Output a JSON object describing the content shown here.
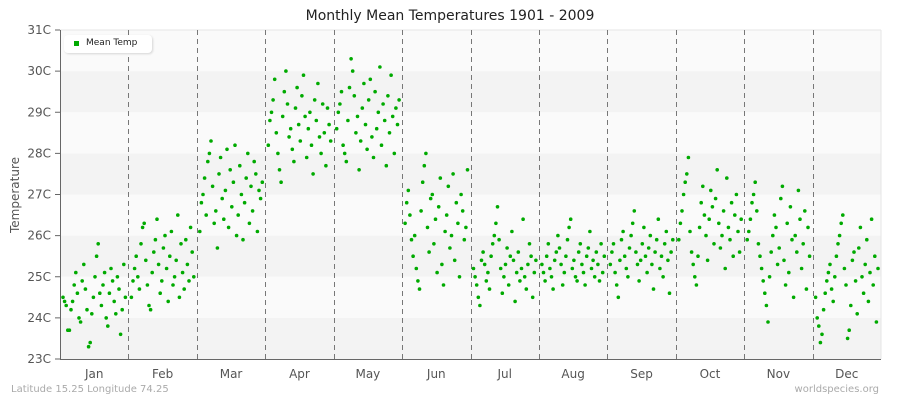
{
  "chart_data": {
    "type": "scatter",
    "title": "Monthly Mean Temperatures 1901 - 2009",
    "xlabel": "",
    "ylabel": "Temperature",
    "ylim": [
      23,
      31
    ],
    "yticks": [
      "23C",
      "24C",
      "25C",
      "26C",
      "27C",
      "28C",
      "29C",
      "30C",
      "31C"
    ],
    "categories": [
      "Jan",
      "Feb",
      "Mar",
      "Apr",
      "May",
      "Jun",
      "Jul",
      "Aug",
      "Sep",
      "Oct",
      "Nov",
      "Dec"
    ],
    "legend": [
      {
        "name": "Mean Temp",
        "color": "#00aa00"
      }
    ],
    "legend_position": "top-left",
    "grid": {
      "horizontal_bands": true,
      "vertical_dashed_month_separators": true
    },
    "series": [
      {
        "name": "Mean Temp",
        "color": "#00aa00",
        "monthly_summary": [
          {
            "month": "Jan",
            "min": 23.3,
            "max": 25.8,
            "mean": 24.6
          },
          {
            "month": "Feb",
            "min": 24.2,
            "max": 26.5,
            "mean": 25.2
          },
          {
            "month": "Mar",
            "min": 25.7,
            "max": 28.3,
            "mean": 26.9
          },
          {
            "month": "Apr",
            "min": 27.3,
            "max": 30.0,
            "mean": 28.6
          },
          {
            "month": "May",
            "min": 27.6,
            "max": 30.3,
            "mean": 28.8
          },
          {
            "month": "Jun",
            "min": 24.7,
            "max": 28.0,
            "mean": 26.2
          },
          {
            "month": "Jul",
            "min": 24.3,
            "max": 26.7,
            "mean": 25.3
          },
          {
            "month": "Aug",
            "min": 24.7,
            "max": 26.4,
            "mean": 25.4
          },
          {
            "month": "Sep",
            "min": 24.5,
            "max": 26.6,
            "mean": 25.5
          },
          {
            "month": "Oct",
            "min": 24.8,
            "max": 27.9,
            "mean": 26.1
          },
          {
            "month": "Nov",
            "min": 23.9,
            "max": 27.3,
            "mean": 25.8
          },
          {
            "month": "Dec",
            "min": 23.4,
            "max": 26.5,
            "mean": 24.9
          }
        ],
        "points_by_month": {
          "Jan": [
            24.5,
            24.4,
            24.3,
            23.7,
            23.7,
            24.2,
            24.4,
            24.8,
            25.1,
            24.6,
            24.0,
            23.9,
            24.9,
            25.3,
            24.7,
            24.2,
            23.3,
            23.4,
            24.1,
            24.5,
            25.0,
            25.5,
            25.8,
            24.6,
            24.3,
            24.8,
            25.1,
            24.0,
            23.8,
            24.6,
            25.2,
            24.9,
            24.4,
            24.1,
            25.0,
            24.7,
            23.6,
            24.2,
            25.3,
            24.5
          ],
          "Feb": [
            24.5,
            24.9,
            25.2,
            25.5,
            25.0,
            24.7,
            25.8,
            26.2,
            26.3,
            25.4,
            24.8,
            24.3,
            24.2,
            25.1,
            25.6,
            25.9,
            26.4,
            25.3,
            24.6,
            24.9,
            25.7,
            26.0,
            25.2,
            24.4,
            25.5,
            26.1,
            24.8,
            25.0,
            25.4,
            26.5,
            24.5,
            25.8,
            25.1,
            24.7,
            25.9,
            25.3,
            24.9,
            26.2,
            25.6,
            25.0
          ],
          "Mar": [
            26.1,
            26.8,
            27.0,
            27.4,
            26.5,
            27.8,
            28.0,
            28.3,
            27.2,
            26.3,
            26.6,
            25.7,
            27.5,
            27.9,
            26.9,
            26.4,
            27.1,
            28.1,
            26.2,
            27.6,
            26.7,
            27.3,
            28.2,
            26.0,
            26.5,
            27.7,
            27.0,
            25.9,
            26.8,
            27.4,
            28.0,
            26.3,
            27.2,
            26.6,
            27.8,
            27.5,
            26.1,
            27.1,
            26.9,
            27.3
          ],
          "Apr": [
            28.2,
            28.8,
            29.0,
            29.3,
            29.8,
            28.5,
            28.0,
            27.6,
            27.3,
            28.9,
            29.5,
            30.0,
            29.2,
            28.4,
            28.6,
            28.1,
            27.8,
            29.1,
            29.6,
            28.7,
            28.3,
            29.4,
            29.9,
            28.9,
            27.9,
            28.6,
            29.0,
            28.2,
            27.5,
            29.3,
            28.8,
            29.7,
            28.4,
            28.0,
            29.2,
            28.5,
            27.7,
            29.1,
            28.7,
            28.3
          ],
          "May": [
            28.6,
            29.0,
            29.2,
            29.5,
            28.2,
            28.0,
            27.8,
            28.8,
            29.6,
            30.3,
            30.0,
            29.4,
            28.5,
            28.9,
            27.6,
            28.3,
            29.1,
            29.7,
            28.7,
            28.1,
            29.3,
            29.8,
            28.4,
            27.9,
            29.5,
            28.6,
            29.0,
            30.1,
            28.2,
            29.2,
            28.8,
            27.7,
            29.4,
            28.5,
            29.9,
            28.9,
            28.0,
            29.1,
            28.7,
            29.3
          ],
          "Jun": [
            26.3,
            26.8,
            27.1,
            26.5,
            25.9,
            25.5,
            26.0,
            25.2,
            24.9,
            24.7,
            26.6,
            27.3,
            27.7,
            28.0,
            26.2,
            25.6,
            26.9,
            27.0,
            25.8,
            26.4,
            25.1,
            26.7,
            27.4,
            25.3,
            24.8,
            26.1,
            26.5,
            27.2,
            25.7,
            26.0,
            27.5,
            25.4,
            26.8,
            26.3,
            25.0,
            27.0,
            26.6,
            25.9,
            26.2,
            27.6
          ],
          "Jul": [
            25.2,
            25.0,
            24.8,
            24.5,
            24.3,
            25.4,
            25.6,
            25.3,
            24.9,
            25.1,
            24.7,
            25.5,
            25.8,
            26.0,
            26.3,
            26.7,
            25.9,
            25.2,
            24.6,
            25.0,
            25.3,
            25.7,
            24.8,
            25.5,
            26.1,
            25.4,
            24.4,
            25.1,
            25.6,
            24.9,
            25.2,
            26.4,
            25.0,
            24.7,
            25.3,
            25.8,
            25.5,
            24.5,
            25.1,
            25.4
          ],
          "Aug": [
            25.3,
            25.1,
            24.9,
            25.5,
            25.8,
            25.2,
            25.0,
            24.7,
            25.4,
            25.6,
            26.0,
            25.7,
            25.3,
            24.8,
            25.1,
            25.5,
            25.9,
            26.2,
            26.4,
            25.2,
            25.4,
            25.0,
            24.9,
            25.6,
            25.8,
            25.3,
            25.1,
            24.8,
            25.5,
            25.7,
            26.1,
            25.2,
            25.4,
            25.0,
            25.6,
            25.3,
            24.9,
            25.8,
            25.1,
            25.5
          ],
          "Sep": [
            25.3,
            25.6,
            25.8,
            25.1,
            24.8,
            24.5,
            25.4,
            25.9,
            26.1,
            25.5,
            25.2,
            25.0,
            25.7,
            26.0,
            26.3,
            26.6,
            25.6,
            25.3,
            24.9,
            25.4,
            25.8,
            26.2,
            25.5,
            25.1,
            25.7,
            26.0,
            25.3,
            24.7,
            25.6,
            25.9,
            26.4,
            25.2,
            25.5,
            25.0,
            25.8,
            26.1,
            25.4,
            24.6,
            25.6,
            25.9
          ],
          "Oct": [
            25.9,
            26.3,
            26.6,
            27.0,
            27.3,
            27.5,
            27.9,
            26.1,
            25.6,
            25.3,
            25.0,
            24.8,
            25.5,
            26.2,
            26.8,
            27.2,
            26.5,
            26.0,
            25.4,
            26.4,
            27.1,
            26.7,
            25.8,
            26.9,
            27.6,
            26.3,
            25.7,
            26.0,
            26.6,
            25.2,
            27.4,
            26.2,
            25.9,
            26.8,
            25.5,
            26.5,
            27.0,
            26.1,
            25.6,
            26.4
          ],
          "Nov": [
            25.9,
            26.1,
            26.4,
            26.8,
            27.0,
            27.3,
            26.6,
            25.8,
            25.5,
            25.2,
            24.9,
            24.6,
            24.3,
            23.9,
            25.0,
            25.6,
            26.0,
            26.5,
            26.2,
            25.3,
            25.7,
            26.9,
            27.2,
            25.4,
            24.8,
            26.3,
            25.1,
            26.7,
            25.9,
            24.5,
            26.0,
            25.6,
            27.1,
            26.4,
            25.2,
            25.8,
            26.6,
            24.7,
            26.2,
            25.5
          ],
          "Dec": [
            24.5,
            24.0,
            23.8,
            23.4,
            23.6,
            24.2,
            24.6,
            24.9,
            25.1,
            25.3,
            24.7,
            24.4,
            25.0,
            25.5,
            25.8,
            26.0,
            26.3,
            26.5,
            25.2,
            24.8,
            23.5,
            23.7,
            24.3,
            25.4,
            25.6,
            24.9,
            24.1,
            25.7,
            26.2,
            25.0,
            24.6,
            25.3,
            25.9,
            24.4,
            25.1,
            26.4,
            24.8,
            25.5,
            23.9,
            25.2
          ]
        }
      }
    ]
  },
  "title": "Monthly Mean Temperatures 1901 - 2009",
  "ylabel": "Temperature",
  "legend": {
    "label": "Mean Temp",
    "color": "#00aa00"
  },
  "footer": {
    "location": "Latitude 15.25 Longitude 74.25",
    "source": "worldspecies.org"
  },
  "colors": {
    "point": "#00aa00",
    "band_dark": "#f3f3f3",
    "band_light": "#fafafa",
    "axis": "#666666",
    "separator": "#777777"
  }
}
